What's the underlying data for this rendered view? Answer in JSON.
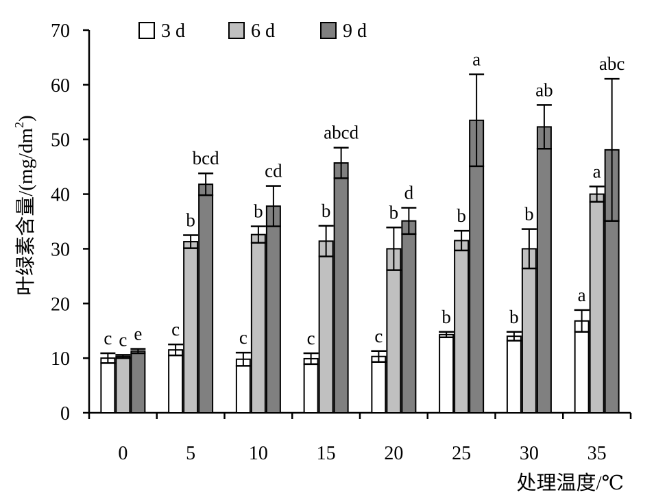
{
  "chart_data": {
    "type": "bar",
    "xlabel": "处理温度/℃",
    "ylabel_main": "叶绿素含量/(mg/dm",
    "ylabel_sup": "2",
    "ylabel_close": ")",
    "ylim": [
      0,
      70
    ],
    "yticks": [
      0,
      10,
      20,
      30,
      40,
      50,
      60,
      70
    ],
    "categories": [
      "0",
      "5",
      "10",
      "15",
      "20",
      "25",
      "30",
      "35"
    ],
    "legend_position": "top",
    "grid": false,
    "series": [
      {
        "name": "3 d",
        "color": "#ffffff",
        "values": [
          10.0,
          11.5,
          9.8,
          9.9,
          10.3,
          14.3,
          14.0,
          16.8
        ],
        "errors": [
          0.9,
          1.0,
          1.2,
          1.0,
          1.0,
          0.5,
          0.8,
          2.0
        ],
        "letters": [
          "c",
          "c",
          "c",
          "c",
          "c",
          "b",
          "b",
          "a"
        ]
      },
      {
        "name": "6 d",
        "color": "#c0c0c0",
        "values": [
          10.3,
          31.3,
          32.6,
          31.4,
          30.0,
          31.5,
          30.0,
          40.0
        ],
        "errors": [
          0.3,
          1.2,
          1.5,
          2.8,
          3.9,
          1.8,
          3.6,
          1.4
        ],
        "letters": [
          "c",
          "b",
          "b",
          "b",
          "b",
          "b",
          "b",
          "a"
        ]
      },
      {
        "name": "9 d",
        "color": "#808080",
        "values": [
          11.3,
          41.8,
          37.8,
          45.7,
          35.1,
          53.5,
          52.3,
          48.1
        ],
        "errors": [
          0.4,
          2.0,
          3.7,
          2.8,
          2.4,
          8.4,
          4.0,
          13.0
        ],
        "letters": [
          "e",
          "bcd",
          "cd",
          "abcd",
          "d",
          "a",
          "ab",
          "abc"
        ]
      }
    ]
  }
}
